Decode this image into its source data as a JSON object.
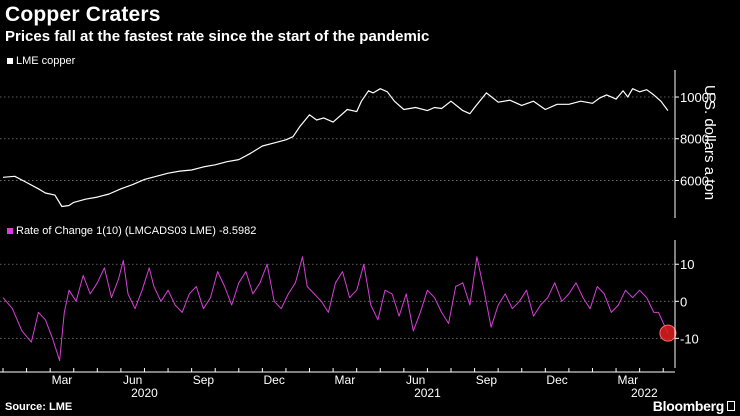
{
  "header": {
    "title": "Copper Craters",
    "subtitle": "Prices fall at the fastest rate since the start of the pandemic"
  },
  "footer": {
    "source": "Source: LME",
    "brand": "Bloomberg"
  },
  "colors": {
    "background": "#000000",
    "price_line": "#ffffff",
    "roc_line": "#d63fd6",
    "marker": "#e01f1f",
    "grid": "#7a7a7a"
  },
  "x_axis": {
    "months": [
      {
        "label": "Mar",
        "t": 2
      },
      {
        "label": "Jun",
        "t": 5
      },
      {
        "label": "Sep",
        "t": 8
      },
      {
        "label": "Dec",
        "t": 11
      },
      {
        "label": "Mar",
        "t": 14
      },
      {
        "label": "Jun",
        "t": 17
      },
      {
        "label": "Sep",
        "t": 20
      },
      {
        "label": "Dec",
        "t": 23
      },
      {
        "label": "Mar",
        "t": 26
      }
    ],
    "years": [
      {
        "label": "2020",
        "t": 6
      },
      {
        "label": "2021",
        "t": 18
      },
      {
        "label": "2022",
        "t": 27.2
      }
    ],
    "range": [
      0,
      28.5
    ]
  },
  "chart_data": [
    {
      "type": "line",
      "legend": "LME copper",
      "ylabel": "U.S. dollars a ton",
      "ylim": [
        4200,
        11200
      ],
      "yticks": [
        6000,
        8000,
        10000
      ],
      "grid": true,
      "x": [
        0,
        0.5,
        1,
        1.5,
        1.8,
        2.2,
        2.5,
        2.8,
        3,
        3.5,
        4,
        4.5,
        5,
        5.5,
        6,
        6.5,
        7,
        7.5,
        8,
        8.5,
        9,
        9.5,
        10,
        10.5,
        11,
        11.5,
        12,
        12.3,
        12.6,
        13,
        13.3,
        13.6,
        14,
        14.3,
        14.6,
        15,
        15.2,
        15.5,
        15.7,
        16,
        16.3,
        16.6,
        17,
        17.5,
        18,
        18.3,
        18.6,
        19,
        19.5,
        19.8,
        20,
        20.5,
        21,
        21.5,
        22,
        22.5,
        23,
        23.5,
        24,
        24.5,
        25,
        25.3,
        25.6,
        26,
        26.3,
        26.5,
        26.7,
        27,
        27.3,
        27.6,
        27.9,
        28.2
      ],
      "series": [
        {
          "name": "LME copper",
          "values": [
            6150,
            6200,
            5900,
            5600,
            5400,
            5300,
            4750,
            4800,
            4950,
            5100,
            5200,
            5350,
            5600,
            5800,
            6050,
            6200,
            6350,
            6450,
            6500,
            6650,
            6750,
            6900,
            7000,
            7300,
            7650,
            7800,
            7950,
            8100,
            8600,
            9150,
            8900,
            9000,
            8800,
            9100,
            9400,
            9300,
            9800,
            10300,
            10200,
            10400,
            10250,
            9800,
            9400,
            9500,
            9350,
            9500,
            9450,
            9800,
            9350,
            9200,
            9500,
            10200,
            9750,
            9850,
            9600,
            9800,
            9400,
            9650,
            9650,
            9800,
            9700,
            9950,
            10100,
            9900,
            10300,
            10000,
            10400,
            10250,
            10350,
            10100,
            9800,
            9350
          ]
        }
      ]
    },
    {
      "type": "line",
      "legend": "Rate of Change 1(10) (LMCADS03 LME)",
      "last_value": "-8.5982",
      "ylim": [
        -18,
        16
      ],
      "yticks": [
        10,
        0,
        -10
      ],
      "grid": true,
      "x": [
        0,
        0.4,
        0.8,
        1.2,
        1.5,
        1.8,
        2.1,
        2.4,
        2.6,
        2.8,
        3.1,
        3.4,
        3.7,
        4,
        4.3,
        4.6,
        4.9,
        5.1,
        5.3,
        5.6,
        5.9,
        6.2,
        6.4,
        6.7,
        7,
        7.3,
        7.6,
        7.9,
        8.2,
        8.5,
        8.8,
        9.1,
        9.4,
        9.7,
        10,
        10.3,
        10.6,
        10.9,
        11.2,
        11.5,
        11.8,
        12.1,
        12.4,
        12.7,
        12.9,
        13.2,
        13.5,
        13.8,
        14.1,
        14.4,
        14.7,
        15,
        15.3,
        15.6,
        15.9,
        16.2,
        16.5,
        16.8,
        17.1,
        17.4,
        17.7,
        18,
        18.3,
        18.6,
        18.9,
        19.2,
        19.5,
        19.8,
        20.1,
        20.4,
        20.7,
        21,
        21.3,
        21.6,
        21.9,
        22.2,
        22.5,
        22.8,
        23.1,
        23.4,
        23.7,
        24,
        24.3,
        24.6,
        24.9,
        25.2,
        25.5,
        25.8,
        26.1,
        26.4,
        26.7,
        27,
        27.3,
        27.6,
        27.8,
        28.2
      ],
      "series": [
        {
          "name": "Rate of Change 1(10)",
          "values": [
            1,
            -2,
            -8,
            -11,
            -3,
            -5,
            -10,
            -16,
            -3,
            3,
            0,
            7,
            2,
            5,
            9,
            1,
            6,
            11,
            2,
            -2,
            3,
            9,
            4,
            0,
            3,
            -1,
            -3,
            2,
            4,
            -2,
            1,
            8,
            4,
            -1,
            5,
            8,
            2,
            5,
            10,
            0,
            -2,
            2,
            5,
            12,
            4,
            2,
            0,
            -3,
            5,
            8,
            1,
            3,
            10,
            -1,
            -5,
            3,
            2,
            -4,
            2,
            -8,
            -3,
            3,
            1,
            -3,
            -6,
            4,
            5,
            -1,
            12,
            3,
            -7,
            -1,
            2,
            -2,
            0,
            3,
            -4,
            -1,
            1,
            5,
            0,
            2,
            5,
            1,
            -2,
            4,
            2,
            -3,
            -1,
            3,
            1,
            3,
            1,
            -3,
            -3,
            -8.5982
          ]
        }
      ]
    }
  ]
}
